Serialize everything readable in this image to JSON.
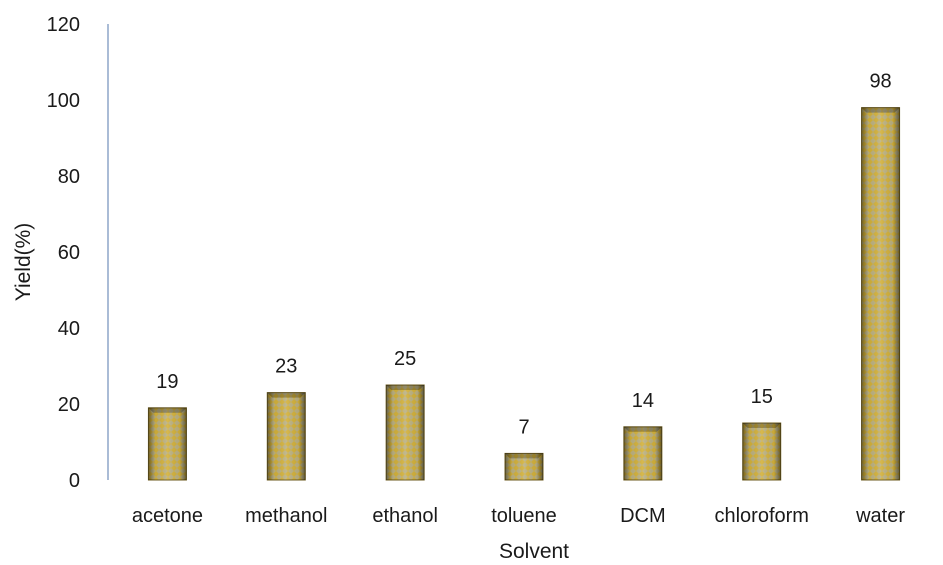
{
  "chart_data": {
    "type": "bar",
    "categories": [
      "acetone",
      "methanol",
      "ethanol",
      "toluene",
      "DCM",
      "chloroform",
      "water"
    ],
    "values": [
      19,
      23,
      25,
      7,
      14,
      15,
      98
    ],
    "data_labels": [
      "19",
      "23",
      "25",
      "7",
      "14",
      "15",
      "98"
    ],
    "title": "",
    "xlabel": "Solvent",
    "ylabel": "Yield(%)",
    "ylim": [
      0,
      120
    ],
    "yticks": [
      "0",
      "20",
      "40",
      "60",
      "80",
      "100",
      "120"
    ],
    "grid": false,
    "legend": "none",
    "colors": {
      "bar_fill": "#c8a93a",
      "bar_pattern": "#8fa0b8",
      "bar_edge": "#6b5a1e",
      "axis": "#8ea6c8"
    }
  }
}
